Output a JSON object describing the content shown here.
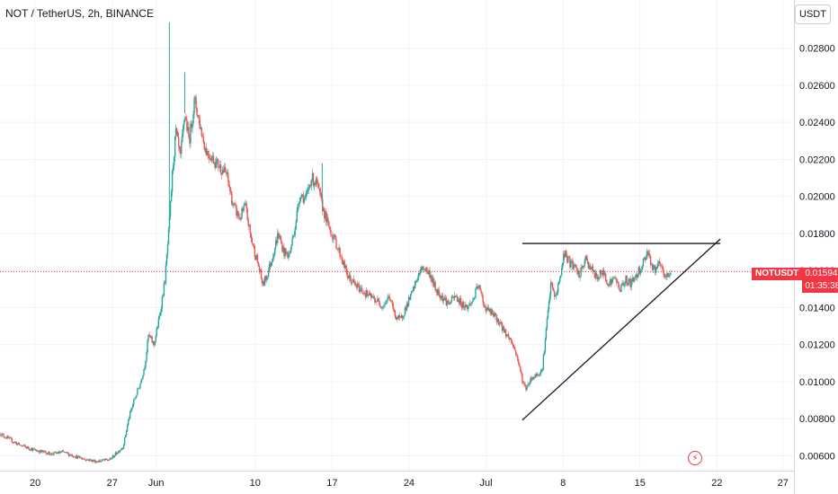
{
  "header": {
    "title": "NOT / TetherUS, 2h, BINANCE"
  },
  "currency_button": "USDT",
  "price_tag": {
    "symbol": "NOTUSDT",
    "price": "0.01594",
    "countdown": "01:35:38"
  },
  "icons": {
    "lightning": "lightning-icon"
  },
  "colors": {
    "up": "#26a69a",
    "down": "#ef5350",
    "last_price_line": "#f23645",
    "trendline": "#131722",
    "grid": "#f0f3fa"
  },
  "chart_data": {
    "type": "candlestick",
    "title": "NOT / TetherUS, 2h, BINANCE",
    "exchange": "BINANCE",
    "interval": "2h",
    "ylim": [
      0.0052,
      0.0306
    ],
    "y_ticks": [
      "0.00600",
      "0.00800",
      "0.01000",
      "0.01200",
      "0.01400",
      "0.01600",
      "0.01800",
      "0.02000",
      "0.02200",
      "0.02400",
      "0.02600",
      "0.02800"
    ],
    "x_ticks": [
      "20",
      "27",
      "Jun",
      "10",
      "17",
      "24",
      "Jul",
      "8",
      "15",
      "22",
      "27"
    ],
    "x_tick_days": [
      20,
      27,
      31,
      40,
      47,
      54,
      61,
      68,
      75,
      82,
      88
    ],
    "x_range_days": [
      16.8,
      89
    ],
    "last_price": 0.01594,
    "price_path": [
      [
        16.8,
        0.0072
      ],
      [
        18.5,
        0.0066
      ],
      [
        20,
        0.0063
      ],
      [
        21.5,
        0.0061
      ],
      [
        22.5,
        0.0062
      ],
      [
        24,
        0.0059
      ],
      [
        25.5,
        0.0057
      ],
      [
        26.8,
        0.0058
      ],
      [
        28,
        0.0065
      ],
      [
        28.5,
        0.008
      ],
      [
        29,
        0.009
      ],
      [
        29.6,
        0.01
      ],
      [
        30,
        0.011
      ],
      [
        30.3,
        0.0125
      ],
      [
        30.8,
        0.012
      ],
      [
        31.3,
        0.0135
      ],
      [
        31.8,
        0.0155
      ],
      [
        32.2,
        0.0185
      ],
      [
        32.5,
        0.0215
      ],
      [
        32.8,
        0.0235
      ],
      [
        33.2,
        0.022
      ],
      [
        33.6,
        0.0245
      ],
      [
        34,
        0.023
      ],
      [
        34.5,
        0.0252
      ],
      [
        35,
        0.0238
      ],
      [
        35.5,
        0.0225
      ],
      [
        36.5,
        0.0218
      ],
      [
        37.4,
        0.0212
      ],
      [
        38,
        0.0195
      ],
      [
        38.6,
        0.0188
      ],
      [
        39.1,
        0.0195
      ],
      [
        39.6,
        0.0178
      ],
      [
        40.2,
        0.0165
      ],
      [
        40.7,
        0.0152
      ],
      [
        41.1,
        0.0158
      ],
      [
        41.6,
        0.0168
      ],
      [
        42.1,
        0.018
      ],
      [
        42.6,
        0.017
      ],
      [
        43.1,
        0.0168
      ],
      [
        43.6,
        0.0183
      ],
      [
        44.1,
        0.0202
      ],
      [
        44.6,
        0.0198
      ],
      [
        45.1,
        0.021
      ],
      [
        45.6,
        0.0207
      ],
      [
        46.1,
        0.0195
      ],
      [
        46.6,
        0.0185
      ],
      [
        47.2,
        0.0177
      ],
      [
        47.8,
        0.0168
      ],
      [
        48.4,
        0.0157
      ],
      [
        49.1,
        0.0152
      ],
      [
        49.8,
        0.0149
      ],
      [
        50.4,
        0.0146
      ],
      [
        51,
        0.0144
      ],
      [
        51.6,
        0.0141
      ],
      [
        52.2,
        0.0146
      ],
      [
        52.7,
        0.0136
      ],
      [
        53.2,
        0.0133
      ],
      [
        53.7,
        0.014
      ],
      [
        54.3,
        0.0148
      ],
      [
        54.8,
        0.0157
      ],
      [
        55.3,
        0.0162
      ],
      [
        55.9,
        0.0158
      ],
      [
        56.4,
        0.015
      ],
      [
        57,
        0.0146
      ],
      [
        57.6,
        0.0142
      ],
      [
        58.2,
        0.0146
      ],
      [
        58.8,
        0.0142
      ],
      [
        59.3,
        0.014
      ],
      [
        59.8,
        0.0144
      ],
      [
        60.3,
        0.0152
      ],
      [
        60.9,
        0.014
      ],
      [
        61.5,
        0.0137
      ],
      [
        62.1,
        0.0133
      ],
      [
        62.7,
        0.0127
      ],
      [
        63.3,
        0.0122
      ],
      [
        63.8,
        0.0114
      ],
      [
        64.3,
        0.0101
      ],
      [
        64.6,
        0.0096
      ],
      [
        65,
        0.0101
      ],
      [
        65.6,
        0.0104
      ],
      [
        66.1,
        0.0106
      ],
      [
        66.5,
        0.013
      ],
      [
        66.9,
        0.0153
      ],
      [
        67.3,
        0.0145
      ],
      [
        67.8,
        0.0158
      ],
      [
        68.1,
        0.017
      ],
      [
        68.5,
        0.0165
      ],
      [
        69,
        0.0162
      ],
      [
        69.5,
        0.0157
      ],
      [
        70,
        0.0166
      ],
      [
        70.5,
        0.0162
      ],
      [
        71,
        0.0156
      ],
      [
        71.6,
        0.0159
      ],
      [
        72.2,
        0.0153
      ],
      [
        72.7,
        0.0156
      ],
      [
        73.2,
        0.015
      ],
      [
        73.7,
        0.0155
      ],
      [
        74.2,
        0.0153
      ],
      [
        74.7,
        0.0158
      ],
      [
        75.2,
        0.0163
      ],
      [
        75.7,
        0.0171
      ],
      [
        76.2,
        0.016
      ],
      [
        76.8,
        0.0163
      ],
      [
        77.3,
        0.0156
      ],
      [
        77.8,
        0.0159
      ]
    ],
    "spikes": [
      {
        "day": 32.2,
        "high": 0.0294
      },
      {
        "day": 33.6,
        "high": 0.0267
      },
      {
        "day": 46.1,
        "high": 0.0218
      }
    ],
    "annotations": [
      {
        "type": "horizontal_trendline",
        "from_day": 64.3,
        "to_day": 82.3,
        "price": 0.01746
      },
      {
        "type": "ascending_trendline",
        "from_day": 64.3,
        "from_price": 0.00793,
        "to_day": 82.3,
        "to_price": 0.0177
      }
    ],
    "grid": true
  }
}
